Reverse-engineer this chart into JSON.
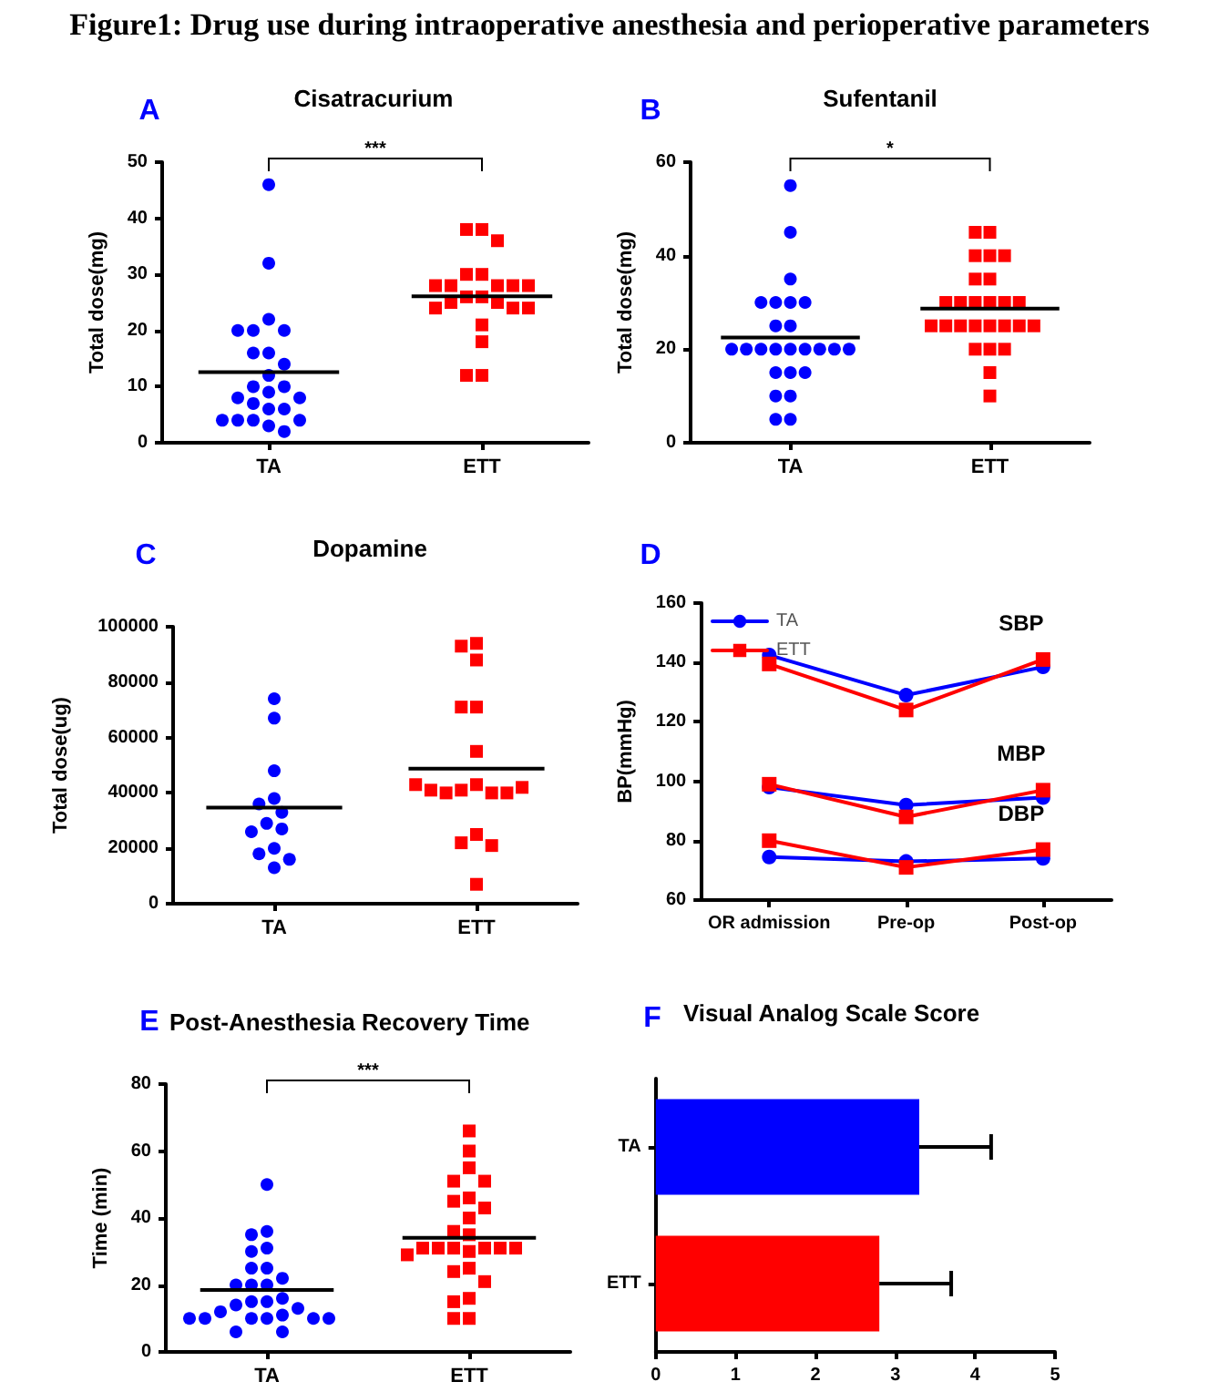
{
  "chart_data": [
    {
      "type": "other",
      "title": "Figure1: Drug use during intraoperative anesthesia and perioperative parameters"
    },
    {
      "type": "scatter",
      "title": "Cisatracurium",
      "ylabel": "Total dose(mg)",
      "annotations": [
        "A",
        "***"
      ],
      "categories": [
        "TA",
        "ETT"
      ],
      "ylim": [
        0,
        50
      ],
      "yticks": [
        0,
        10,
        20,
        30,
        40,
        50
      ],
      "grid": false,
      "series": [
        {
          "type": "scatter",
          "color": "#0000ff",
          "marker": "circle",
          "x": [
            "TA",
            "TA",
            "TA",
            "TA",
            "TA",
            "TA",
            "TA",
            "TA",
            "TA",
            "TA",
            "TA",
            "TA",
            "TA",
            "TA",
            "TA",
            "TA",
            "TA",
            "TA",
            "TA",
            "TA",
            "TA",
            "TA",
            "TA",
            "TA"
          ],
          "values": [
            46,
            32,
            22,
            20,
            20,
            20,
            16,
            16,
            14,
            12,
            10,
            10,
            9,
            8,
            8,
            7,
            6,
            6,
            4,
            4,
            4,
            4,
            3,
            2
          ]
        },
        {
          "type": "scatter",
          "color": "#ff0000",
          "marker": "square",
          "x": [
            "ETT",
            "ETT",
            "ETT",
            "ETT",
            "ETT",
            "ETT",
            "ETT",
            "ETT",
            "ETT",
            "ETT",
            "ETT",
            "ETT",
            "ETT",
            "ETT",
            "ETT",
            "ETT",
            "ETT",
            "ETT",
            "ETT",
            "ETT",
            "ETT"
          ],
          "values": [
            38,
            38,
            36,
            30,
            30,
            28,
            28,
            28,
            28,
            28,
            26,
            26,
            25,
            25,
            24,
            24,
            24,
            21,
            18,
            12,
            12
          ]
        },
        {
          "type": "box",
          "color": "#000000",
          "boxes": [
            {
              "low": 12.6,
              "q1": 12.6,
              "median": 12.6,
              "q3": 12.6,
              "high": 12.6
            },
            {
              "low": 26.1,
              "q1": 26.1,
              "median": 26.1,
              "q3": 26.1,
              "high": 26.1
            }
          ]
        }
      ]
    },
    {
      "type": "scatter",
      "title": "Sufentanil",
      "ylabel": "Total dose(mg)",
      "annotations": [
        "B",
        "*"
      ],
      "categories": [
        "TA",
        "ETT"
      ],
      "ylim": [
        0,
        60
      ],
      "yticks": [
        0,
        20,
        40,
        60
      ],
      "grid": false,
      "series": [
        {
          "type": "scatter",
          "color": "#0000ff",
          "marker": "circle",
          "x": [
            "TA",
            "TA",
            "TA",
            "TA",
            "TA",
            "TA",
            "TA",
            "TA",
            "TA",
            "TA",
            "TA",
            "TA",
            "TA",
            "TA",
            "TA",
            "TA",
            "TA",
            "TA",
            "TA",
            "TA",
            "TA",
            "TA",
            "TA",
            "TA",
            "TA"
          ],
          "values": [
            55,
            45,
            35,
            30,
            30,
            30,
            30,
            25,
            25,
            20,
            20,
            20,
            20,
            20,
            20,
            20,
            20,
            20,
            15,
            15,
            15,
            10,
            10,
            5,
            5
          ]
        },
        {
          "type": "scatter",
          "color": "#ff0000",
          "marker": "square",
          "x": [
            "ETT",
            "ETT",
            "ETT",
            "ETT",
            "ETT",
            "ETT",
            "ETT",
            "ETT",
            "ETT",
            "ETT",
            "ETT",
            "ETT",
            "ETT",
            "ETT",
            "ETT",
            "ETT",
            "ETT",
            "ETT",
            "ETT",
            "ETT",
            "ETT",
            "ETT",
            "ETT",
            "ETT",
            "ETT",
            "ETT"
          ],
          "values": [
            45,
            45,
            40,
            40,
            40,
            35,
            35,
            30,
            30,
            30,
            30,
            30,
            30,
            25,
            25,
            25,
            25,
            25,
            25,
            25,
            25,
            20,
            20,
            20,
            15,
            10
          ]
        },
        {
          "type": "box",
          "color": "#000000",
          "boxes": [
            {
              "low": 22.5,
              "q1": 22.5,
              "median": 22.5,
              "q3": 22.5,
              "high": 22.5
            },
            {
              "low": 28.7,
              "q1": 28.7,
              "median": 28.7,
              "q3": 28.7,
              "high": 28.7
            }
          ]
        }
      ]
    },
    {
      "type": "scatter",
      "title": "Dopamine",
      "ylabel": "Total dose(ug)",
      "annotations": [
        "C"
      ],
      "categories": [
        "TA",
        "ETT"
      ],
      "ylim": [
        0,
        100000
      ],
      "yticks": [
        0,
        20000,
        40000,
        60000,
        80000,
        100000
      ],
      "grid": false,
      "series": [
        {
          "type": "scatter",
          "color": "#0000ff",
          "marker": "circle",
          "x": [
            "TA",
            "TA",
            "TA",
            "TA",
            "TA",
            "TA",
            "TA",
            "TA",
            "TA",
            "TA",
            "TA",
            "TA",
            "TA"
          ],
          "values": [
            74000,
            67000,
            48000,
            38000,
            36000,
            33000,
            29000,
            27000,
            26000,
            20000,
            18000,
            16000,
            13000
          ]
        },
        {
          "type": "scatter",
          "color": "#ff0000",
          "marker": "square",
          "x": [
            "ETT",
            "ETT",
            "ETT",
            "ETT",
            "ETT",
            "ETT",
            "ETT",
            "ETT",
            "ETT",
            "ETT",
            "ETT",
            "ETT",
            "ETT",
            "ETT",
            "ETT",
            "ETT",
            "ETT",
            "ETT"
          ],
          "values": [
            94000,
            93000,
            88000,
            71000,
            71000,
            55000,
            43000,
            41000,
            40000,
            40000,
            40000,
            41000,
            42000,
            43000,
            25000,
            22000,
            21000,
            7000
          ]
        },
        {
          "type": "box",
          "color": "#000000",
          "boxes": [
            {
              "low": 34700,
              "q1": 34700,
              "median": 34700,
              "q3": 34700,
              "high": 34700
            },
            {
              "low": 48800,
              "q1": 48800,
              "median": 48800,
              "q3": 48800,
              "high": 48800
            }
          ]
        }
      ]
    },
    {
      "type": "line",
      "ylabel": "BP(mmHg)",
      "categories": [
        "OR admission",
        "Pre-op",
        "Post-op"
      ],
      "ylim": [
        60,
        160
      ],
      "yticks": [
        60,
        80,
        100,
        120,
        140,
        160
      ],
      "grid": false,
      "legend": "top left",
      "line_style": "solid",
      "annotations": [
        "D",
        "SBP",
        "MBP",
        "DBP"
      ],
      "series": [
        {
          "name": "TA",
          "color": "#0000ff",
          "marker": "circle",
          "values": [
            142.5,
            129,
            138.5
          ]
        },
        {
          "name": "ETT",
          "color": "#ff0000",
          "marker": "square",
          "values": [
            139.5,
            124,
            141
          ]
        },
        {
          "color": "#0000ff",
          "marker": "circle",
          "values": [
            98,
            92,
            94.5
          ]
        },
        {
          "color": "#ff0000",
          "marker": "square",
          "values": [
            99,
            88,
            97
          ]
        },
        {
          "color": "#0000ff",
          "marker": "circle",
          "values": [
            74.5,
            73,
            74
          ]
        },
        {
          "color": "#ff0000",
          "marker": "square",
          "values": [
            80,
            71,
            77
          ]
        }
      ]
    },
    {
      "type": "scatter",
      "title": "Post-Anesthesia Recovery Time",
      "ylabel": "Time (min)",
      "annotations": [
        "E",
        "***"
      ],
      "categories": [
        "TA",
        "ETT"
      ],
      "ylim": [
        0,
        80
      ],
      "yticks": [
        0,
        20,
        40,
        60,
        80
      ],
      "grid": false,
      "series": [
        {
          "type": "scatter",
          "color": "#0000ff",
          "marker": "circle",
          "x": [
            "TA",
            "TA",
            "TA",
            "TA",
            "TA",
            "TA",
            "TA",
            "TA",
            "TA",
            "TA",
            "TA",
            "TA",
            "TA",
            "TA",
            "TA",
            "TA",
            "TA",
            "TA",
            "TA",
            "TA",
            "TA",
            "TA",
            "TA",
            "TA",
            "TA",
            "TA"
          ],
          "values": [
            50,
            36,
            35,
            31,
            30,
            25,
            25,
            22,
            20,
            20,
            20,
            16,
            15,
            15,
            14,
            13,
            12,
            11,
            10,
            10,
            10,
            10,
            10,
            10,
            6,
            6
          ]
        },
        {
          "type": "scatter",
          "color": "#ff0000",
          "marker": "square",
          "x": [
            "ETT",
            "ETT",
            "ETT",
            "ETT",
            "ETT",
            "ETT",
            "ETT",
            "ETT",
            "ETT",
            "ETT",
            "ETT",
            "ETT",
            "ETT",
            "ETT",
            "ETT",
            "ETT",
            "ETT",
            "ETT",
            "ETT",
            "ETT",
            "ETT",
            "ETT",
            "ETT",
            "ETT",
            "ETT",
            "ETT"
          ],
          "values": [
            66,
            60,
            55,
            51,
            51,
            46,
            45,
            43,
            40,
            36,
            35,
            31,
            31,
            31,
            31,
            31,
            31,
            30,
            29,
            25,
            24,
            21,
            16,
            15,
            10,
            10
          ]
        },
        {
          "type": "box",
          "color": "#000000",
          "boxes": [
            {
              "low": 18.5,
              "q1": 18.5,
              "median": 18.5,
              "q3": 18.5,
              "high": 18.5
            },
            {
              "low": 34.1,
              "q1": 34.1,
              "median": 34.1,
              "q3": 34.1,
              "high": 34.1
            }
          ]
        }
      ]
    },
    {
      "type": "bar",
      "orientation": "horizontal",
      "title": "Visual Analog Scale Score",
      "annotations": [
        "F"
      ],
      "categories": [
        "TA",
        "ETT"
      ],
      "values": [
        3.3,
        2.8
      ],
      "colors": [
        "#0000ff",
        "#ff0000"
      ],
      "errors": [
        [
          3.3,
          4.2
        ],
        [
          2.8,
          3.7
        ]
      ],
      "xlim": [
        0,
        5
      ],
      "xticks": [
        0,
        1,
        2,
        3,
        4,
        5
      ],
      "grid": false
    }
  ]
}
